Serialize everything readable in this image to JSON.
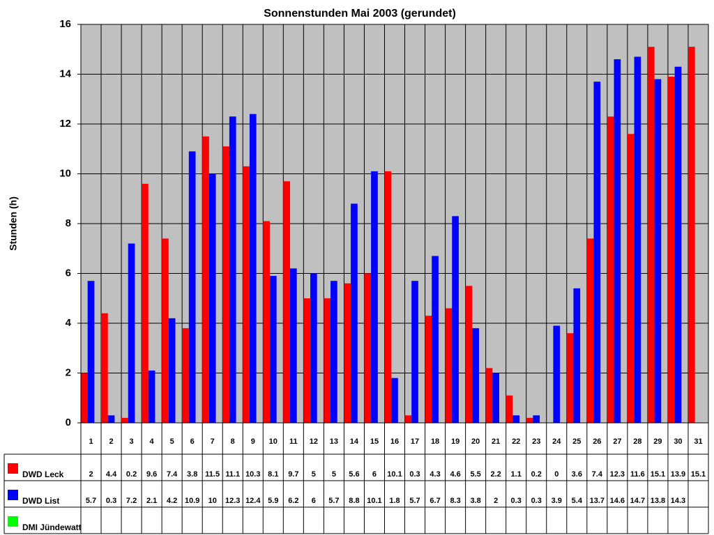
{
  "chart_data": {
    "type": "bar",
    "title": "Sonnenstunden Mai 2003 (gerundet)",
    "y_label": "Stunden (h)",
    "categories": [
      "1",
      "2",
      "3",
      "4",
      "5",
      "6",
      "7",
      "8",
      "9",
      "10",
      "11",
      "12",
      "13",
      "14",
      "15",
      "16",
      "17",
      "18",
      "19",
      "20",
      "21",
      "22",
      "23",
      "24",
      "25",
      "26",
      "27",
      "28",
      "29",
      "30",
      "31"
    ],
    "series": [
      {
        "name": "DWD Leck",
        "color": "#ff0000",
        "values": [
          2,
          4.4,
          0.2,
          9.6,
          7.4,
          3.8,
          11.5,
          11.1,
          10.3,
          8.1,
          9.7,
          5,
          5,
          5.6,
          6,
          10.1,
          0.3,
          4.3,
          4.6,
          5.5,
          2.2,
          1.1,
          0.2,
          0,
          3.6,
          7.4,
          12.3,
          11.6,
          15.1,
          13.9,
          15.1
        ]
      },
      {
        "name": "DWD List",
        "color": "#0000ff",
        "values": [
          5.7,
          0.3,
          7.2,
          2.1,
          4.2,
          10.9,
          10,
          12.3,
          12.4,
          5.9,
          6.2,
          6,
          5.7,
          8.8,
          10.1,
          1.8,
          5.7,
          6.7,
          8.3,
          3.8,
          2,
          0.3,
          0.3,
          3.9,
          5.4,
          13.7,
          14.6,
          14.7,
          13.8,
          14.3,
          null
        ]
      },
      {
        "name": "DMI Jündewatt",
        "color": "#00ff00",
        "values": [
          null,
          null,
          null,
          null,
          null,
          null,
          null,
          null,
          null,
          null,
          null,
          null,
          null,
          null,
          null,
          null,
          null,
          null,
          null,
          null,
          null,
          null,
          null,
          null,
          null,
          null,
          null,
          null,
          null,
          null,
          null
        ]
      }
    ],
    "ylim": [
      0,
      16
    ],
    "yticks": [
      0,
      2,
      4,
      6,
      8,
      10,
      12,
      14,
      16
    ],
    "grid": true,
    "plot_background": "#c0c0c0"
  }
}
